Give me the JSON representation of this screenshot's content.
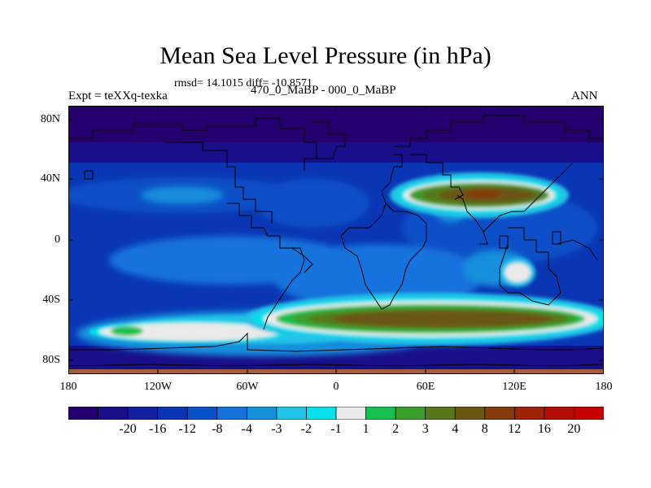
{
  "title": "Mean Sea Level Pressure (in hPa)",
  "stats": "rmsd= 14.1015 diff= -10.8571",
  "left_label": "Expt = teXXq-texka",
  "center_label": "470_0_MaBP - 000_0_MaBP",
  "right_label": "ANN",
  "chart_data": {
    "type": "heatmap",
    "title": "Mean Sea Level Pressure (in hPa)",
    "x_ticks": [
      "180",
      "120W",
      "60W",
      "0",
      "60E",
      "120E",
      "180"
    ],
    "y_ticks": [
      "80N",
      "40N",
      "0",
      "40S",
      "80S"
    ],
    "xlim": [
      -180,
      180
    ],
    "ylim": [
      -90,
      90
    ],
    "colorbar_labels": [
      "-20",
      "-16",
      "-12",
      "-8",
      "-4",
      "-3",
      "-2",
      "-1",
      "1",
      "2",
      "3",
      "4",
      "8",
      "12",
      "16",
      "20"
    ],
    "colorbar_colors": [
      "#24006e",
      "#1a0f8a",
      "#141fa3",
      "#0a36b5",
      "#0a50c8",
      "#1572dc",
      "#148fdc",
      "#21c3e7",
      "#06e1ea",
      "#eaeaea",
      "#17c04f",
      "#3c9e2a",
      "#56781a",
      "#6a5712",
      "#833c0a",
      "#a02307",
      "#b40f05",
      "#c50000"
    ],
    "features": [
      {
        "name": "high-north-asia",
        "lon_range": [
          40,
          150
        ],
        "lat_range": [
          25,
          42
        ],
        "level": "8"
      },
      {
        "name": "high-south-band",
        "lon_range": [
          -40,
          150
        ],
        "lat_range": [
          -65,
          -45
        ],
        "level": "8"
      },
      {
        "name": "high-south-pacific",
        "lon_range": [
          -175,
          -60
        ],
        "lat_range": [
          -70,
          -55
        ],
        "level": "1"
      },
      {
        "name": "high-australia",
        "lon_range": [
          112,
          145
        ],
        "lat_range": [
          -32,
          -15
        ],
        "level": "1"
      }
    ]
  }
}
